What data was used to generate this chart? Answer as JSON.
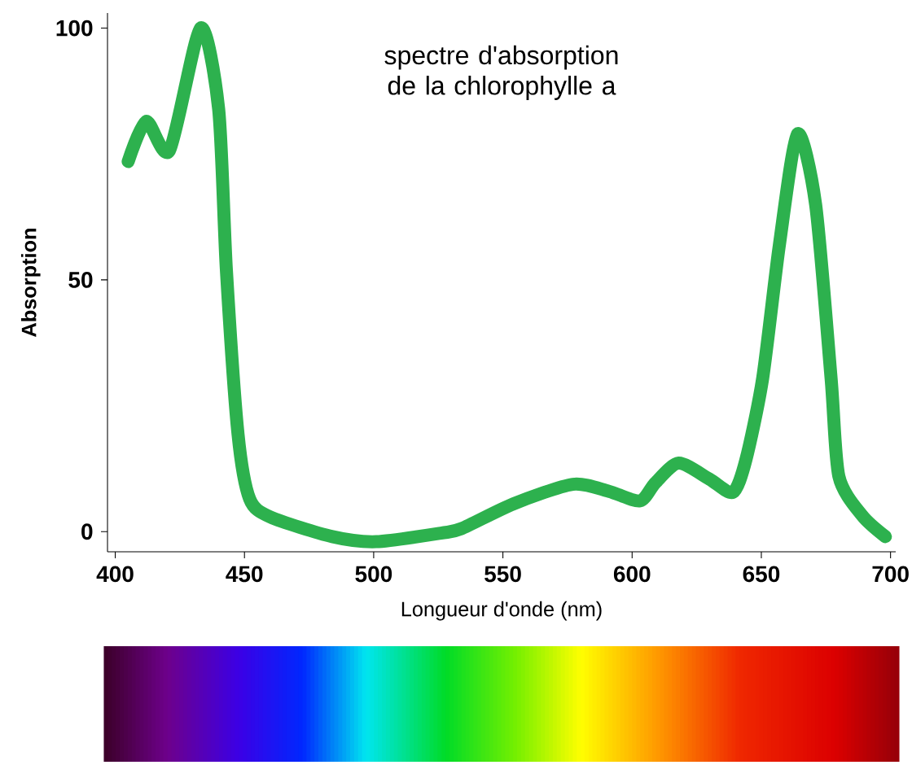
{
  "chart_data": {
    "type": "line",
    "title": "spectre d'absorption de la chlorophylle a",
    "xlabel": "Longueur d'onde (nm)",
    "ylabel": "Absorption",
    "xlim": [
      397,
      702
    ],
    "ylim": [
      -4,
      103
    ],
    "xticks": [
      400,
      450,
      500,
      550,
      600,
      650,
      700
    ],
    "yticks": [
      0,
      50,
      100
    ],
    "grid": false,
    "marker": "none",
    "line_style": "solid",
    "series": [
      {
        "color": "#2db14e",
        "x": [
          405,
          412,
          421,
          433,
          440,
          443,
          447.5,
          452,
          460,
          484,
          501,
          526,
          534,
          554,
          577,
          591,
          603,
          609,
          618,
          630,
          639,
          644,
          650.5,
          657,
          664,
          671,
          677,
          680,
          689,
          698
        ],
        "values": [
          73.5,
          81.5,
          75.7,
          100,
          84,
          52,
          19.4,
          6.5,
          2.9,
          -1,
          -2,
          -0.3,
          0.6,
          5.5,
          9.4,
          8,
          6.1,
          9.7,
          13.6,
          10.4,
          7.8,
          14.2,
          30.4,
          57,
          79,
          65,
          30.4,
          11,
          3.2,
          -1
        ]
      }
    ]
  }
}
